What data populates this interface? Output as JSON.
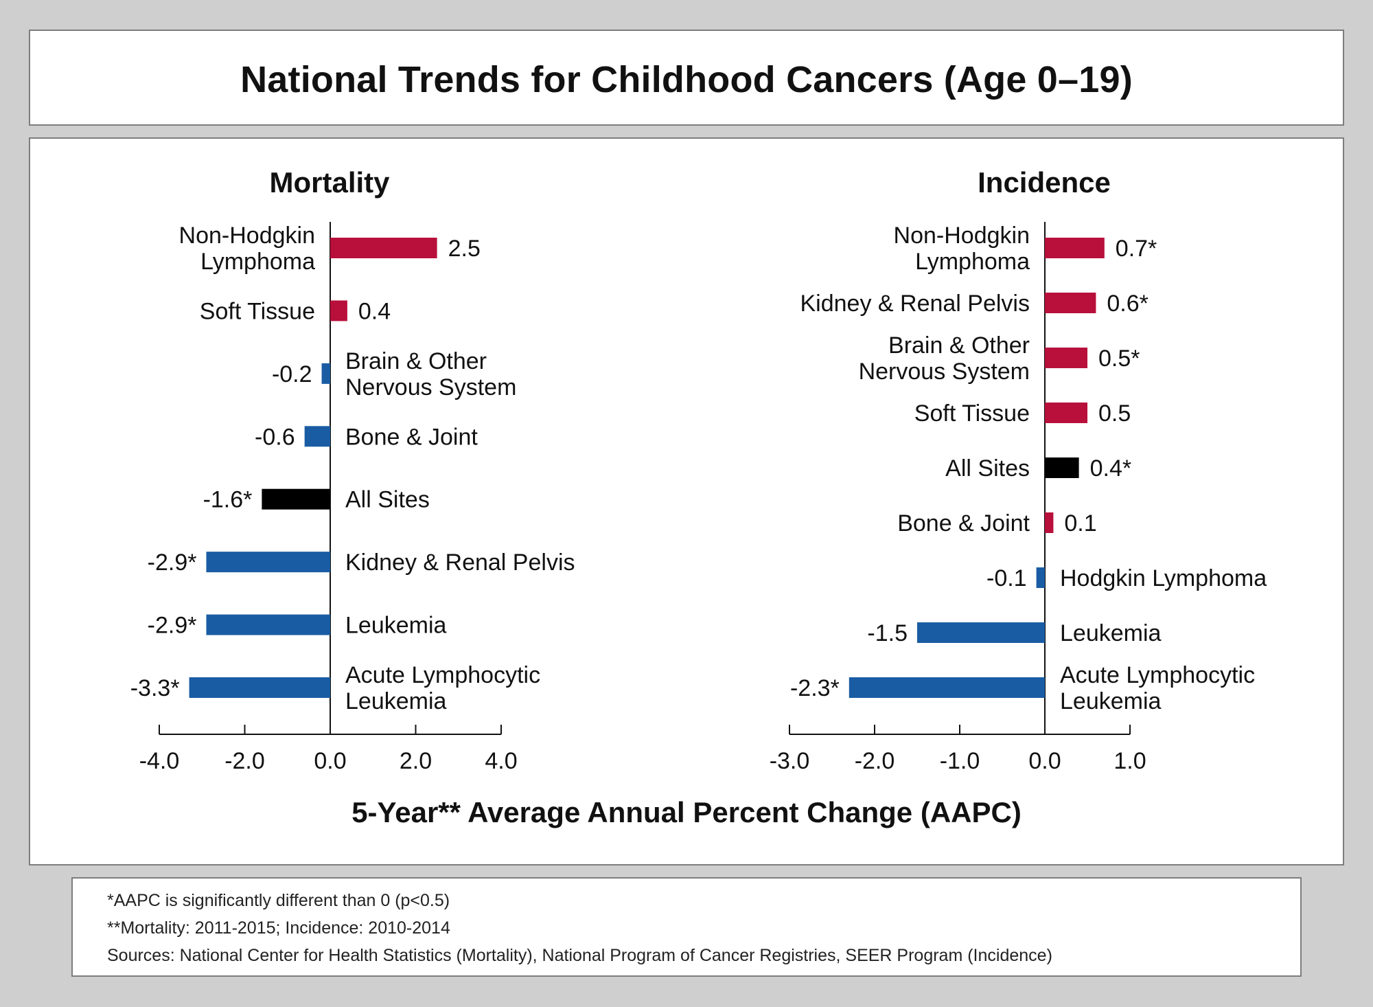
{
  "title": "National Trends for Childhood Cancers (Age 0–19)",
  "colors": {
    "positive": "#b8103b",
    "negative": "#1a5ca3",
    "all_sites": "#000000"
  },
  "chart_data": [
    {
      "type": "bar",
      "orientation": "horizontal",
      "title": "Mortality",
      "categories": [
        "Non-Hodgkin Lymphoma",
        "Soft Tissue",
        "Brain & Other Nervous System",
        "Bone & Joint",
        "All Sites",
        "Kidney & Renal Pelvis",
        "Leukemia",
        "Acute Lymphocytic Leukemia"
      ],
      "label_lines": [
        [
          "Non-Hodgkin",
          "Lymphoma"
        ],
        [
          "Soft Tissue"
        ],
        [
          "Brain & Other",
          "Nervous System"
        ],
        [
          "Bone & Joint"
        ],
        [
          "All Sites"
        ],
        [
          "Kidney & Renal Pelvis"
        ],
        [
          "Leukemia"
        ],
        [
          "Acute Lymphocytic",
          "Leukemia"
        ]
      ],
      "values": [
        2.5,
        0.4,
        -0.2,
        -0.6,
        -1.6,
        -2.9,
        -2.9,
        -3.3
      ],
      "value_labels": [
        "2.5",
        "0.4",
        "-0.2",
        "-0.6",
        "-1.6*",
        "-2.9*",
        "-2.9*",
        "-3.3*"
      ],
      "xlim": [
        -4.0,
        4.0
      ],
      "xticks": [
        -4.0,
        -2.0,
        0.0,
        2.0,
        4.0
      ],
      "xtick_labels": [
        "-4.0",
        "-2.0",
        "0.0",
        "2.0",
        "4.0"
      ]
    },
    {
      "type": "bar",
      "orientation": "horizontal",
      "title": "Incidence",
      "categories": [
        "Non-Hodgkin Lymphoma",
        "Kidney & Renal Pelvis",
        "Brain & Other Nervous System",
        "Soft Tissue",
        "All Sites",
        "Bone & Joint",
        "Hodgkin Lymphoma",
        "Leukemia",
        "Acute Lymphocytic Leukemia"
      ],
      "label_lines": [
        [
          "Non-Hodgkin",
          "Lymphoma"
        ],
        [
          "Kidney & Renal Pelvis"
        ],
        [
          "Brain & Other",
          "Nervous System"
        ],
        [
          "Soft Tissue"
        ],
        [
          "All Sites"
        ],
        [
          "Bone & Joint"
        ],
        [
          "Hodgkin Lymphoma"
        ],
        [
          "Leukemia"
        ],
        [
          "Acute Lymphocytic",
          "Leukemia"
        ]
      ],
      "values": [
        0.7,
        0.6,
        0.5,
        0.5,
        0.4,
        0.1,
        -0.1,
        -1.5,
        -2.3
      ],
      "value_labels": [
        "0.7*",
        "0.6*",
        "0.5*",
        "0.5",
        "0.4*",
        "0.1",
        "-0.1",
        "-1.5",
        "-2.3*"
      ],
      "xlim": [
        -3.0,
        1.0
      ],
      "xticks": [
        -3.0,
        -2.0,
        -1.0,
        0.0,
        1.0
      ],
      "xtick_labels": [
        "-3.0",
        "-2.0",
        "-1.0",
        "0.0",
        "1.0"
      ]
    }
  ],
  "xlabel": "5-Year** Average Annual Percent Change (AAPC)",
  "notes": [
    "*AAPC is significantly different than 0 (p<0.5)",
    "**Mortality: 2011-2015; Incidence: 2010-2014",
    "Sources: National Center for Health Statistics (Mortality), National Program of Cancer Registries, SEER Program (Incidence)"
  ]
}
